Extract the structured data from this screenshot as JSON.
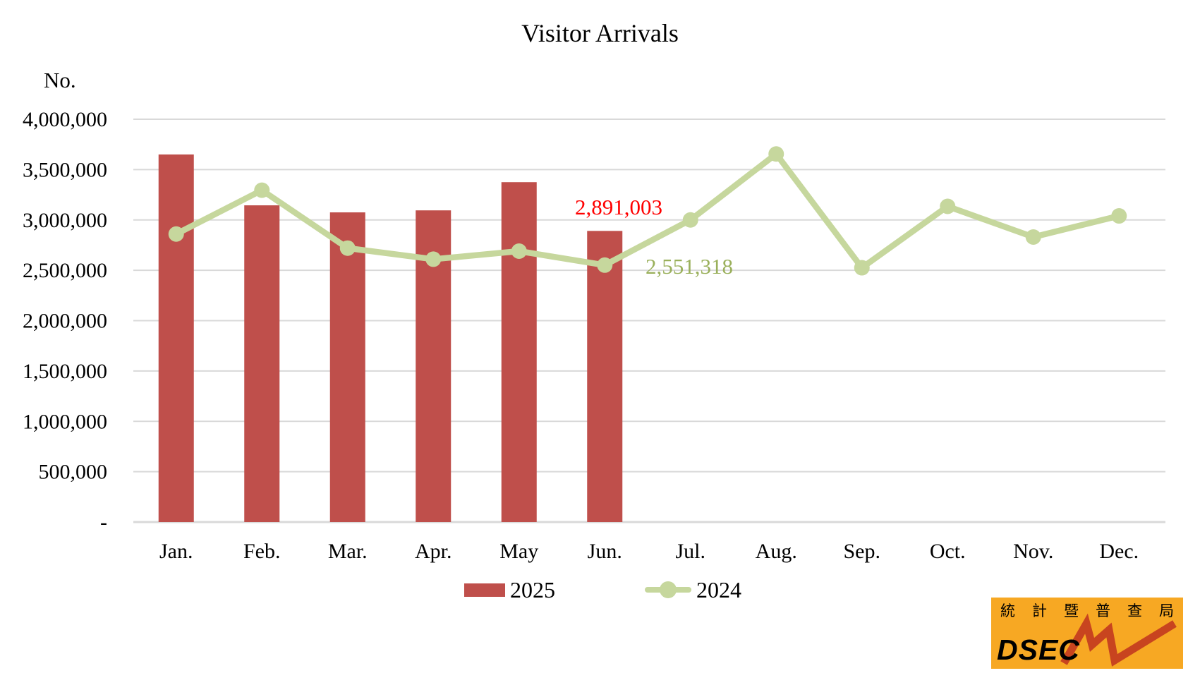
{
  "title": "Visitor Arrivals",
  "y_axis_unit": "No.",
  "legend": {
    "items": [
      {
        "label": "2025",
        "swatch": "bar"
      },
      {
        "label": "2024",
        "swatch": "line-marker"
      }
    ]
  },
  "logo": {
    "chinese_chars": [
      "統",
      "計",
      "暨",
      "普",
      "查",
      "局"
    ],
    "text": "DSEC",
    "bg_color": "#F7A823",
    "zigzag_color": "#C8441F",
    "text_color": "#000000"
  },
  "chart_data": {
    "type": "bar",
    "combo": "bar+line",
    "title": "Visitor Arrivals",
    "ylabel": "No.",
    "xlabel": "",
    "categories": [
      "Jan.",
      "Feb.",
      "Mar.",
      "Apr.",
      "May",
      "Jun.",
      "Jul.",
      "Aug.",
      "Sep.",
      "Oct.",
      "Nov.",
      "Dec."
    ],
    "series": [
      {
        "name": "2025",
        "type": "bar",
        "color": "#BF4F4B",
        "values": [
          3650000,
          3145000,
          3075000,
          3095000,
          3375000,
          2891003,
          null,
          null,
          null,
          null,
          null,
          null
        ]
      },
      {
        "name": "2024",
        "type": "line",
        "color": "#C6D79D",
        "values": [
          2860000,
          3295000,
          2720000,
          2610000,
          2690000,
          2551318,
          3000000,
          3655000,
          2525000,
          3135000,
          2830000,
          3040000
        ]
      }
    ],
    "data_labels": [
      {
        "series": "2025",
        "category": "Jun.",
        "text": "2,891,003",
        "color": "#FF0000"
      },
      {
        "series": "2024",
        "category": "Jun.",
        "text": "2,551,318",
        "color": "#9AB05B"
      }
    ],
    "ylim": [
      0,
      4000000
    ],
    "ytick_step": 500000,
    "yticks": [
      "-",
      "500,000",
      "1,000,000",
      "1,500,000",
      "2,000,000",
      "2,500,000",
      "3,000,000",
      "3,500,000",
      "4,000,000"
    ],
    "grid": "horizontal",
    "grid_color": "#D9D9D9",
    "legend_position": "bottom"
  }
}
